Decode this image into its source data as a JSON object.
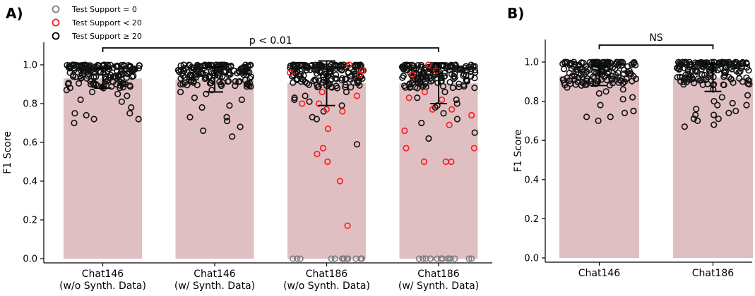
{
  "legend": {
    "items": [
      {
        "label": "Test Support = 0",
        "color": "#808080"
      },
      {
        "label": "Test Support < 20",
        "color": "#ff1a1a"
      },
      {
        "label": "Test Support ≥ 20",
        "color": "#000000"
      }
    ]
  },
  "colors": {
    "bar": "#dfbfc2",
    "axis": "#000000"
  },
  "chart_data": [
    {
      "panel": "A)",
      "type": "bar",
      "ylabel": "F1 Score",
      "ylim": [
        0,
        1.1
      ],
      "yticks": [
        "0.0",
        "0.2",
        "0.4",
        "0.6",
        "0.8",
        "1.0"
      ],
      "categories": [
        {
          "line1": "Chat146",
          "line2": "(w/o Synth. Data)"
        },
        {
          "line1": "Chat146",
          "line2": "(w/ Synth. Data)"
        },
        {
          "line1": "Chat186",
          "line2": "(w/o Synth. Data)"
        },
        {
          "line1": "Chat186",
          "line2": "(w/ Synth. Data)"
        }
      ],
      "values": [
        0.93,
        0.925,
        0.905,
        0.905
      ],
      "errors": [
        [
          0.88,
          0.98
        ],
        [
          0.86,
          0.99
        ],
        [
          0.79,
          1.02
        ],
        [
          0.8,
          1.01
        ]
      ],
      "outliers_red": [
        [],
        [],
        [
          0.97,
          0.96,
          0.86,
          0.84,
          0.8,
          0.8,
          0.77,
          0.67,
          0.57,
          0.54,
          0.5,
          0.4,
          0.17,
          0.76,
          1.0,
          0.95
        ],
        [
          0.97,
          0.95,
          0.86,
          0.83,
          0.77,
          0.69,
          0.66,
          0.57,
          0.5,
          0.57,
          0.5,
          0.5,
          0.82,
          0.77,
          1.0,
          0.74
        ]
      ],
      "outliers_black": [
        [
          0.86,
          0.88,
          0.82,
          0.81,
          0.78,
          0.75,
          0.74,
          0.72,
          0.75,
          0.72,
          0.7,
          0.87,
          0.85,
          0.84
        ],
        [
          0.86,
          0.83,
          0.82,
          0.79,
          0.78,
          0.73,
          0.71,
          0.68,
          0.73,
          0.66,
          0.63,
          0.87,
          0.85
        ],
        [
          0.93,
          0.92,
          0.9,
          0.88,
          0.86,
          0.84,
          0.82,
          0.79,
          0.76,
          0.73,
          0.72,
          0.59,
          0.83,
          0.81
        ],
        [
          0.93,
          0.91,
          0.88,
          0.86,
          0.83,
          0.8,
          0.78,
          0.75,
          0.72,
          0.7,
          0.65,
          0.62,
          0.82,
          0.79
        ]
      ],
      "zero_counts": [
        0,
        0,
        14,
        14
      ],
      "significance": {
        "label": "p < 0.01",
        "from": 0,
        "to": 3
      }
    },
    {
      "panel": "B)",
      "type": "bar",
      "ylabel": "F1 Score",
      "ylim": [
        0,
        1.1
      ],
      "yticks": [
        "0.0",
        "0.2",
        "0.4",
        "0.6",
        "0.8",
        "1.0"
      ],
      "categories": [
        {
          "line1": "Chat146",
          "line2": ""
        },
        {
          "line1": "Chat186",
          "line2": ""
        }
      ],
      "values": [
        0.93,
        0.92
      ],
      "errors": [
        [
          0.88,
          0.98
        ],
        [
          0.85,
          0.99
        ]
      ],
      "outliers_black": [
        [
          0.86,
          0.88,
          0.82,
          0.81,
          0.78,
          0.75,
          0.74,
          0.72,
          0.75,
          0.72,
          0.7,
          0.87,
          0.85,
          0.84
        ],
        [
          0.86,
          0.83,
          0.82,
          0.79,
          0.78,
          0.73,
          0.71,
          0.68,
          0.73,
          0.7,
          0.67,
          0.8,
          0.76,
          0.74,
          0.71,
          0.75,
          0.78
        ]
      ],
      "significance": {
        "label": "NS",
        "from": 0,
        "to": 1
      }
    }
  ]
}
